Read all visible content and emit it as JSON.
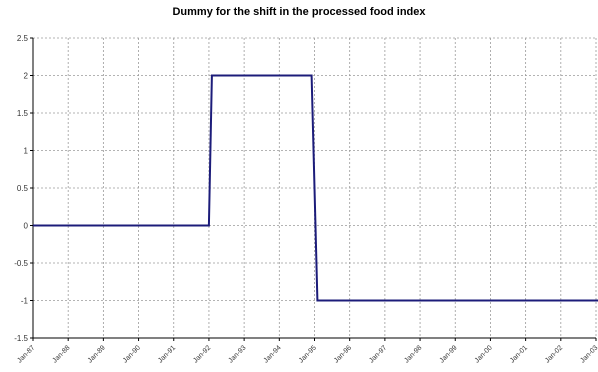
{
  "chart_data": {
    "type": "line",
    "title": "Dummy for the shift in the processed food index",
    "xlabel": "",
    "ylabel": "",
    "ylim": [
      -1.5,
      2.5
    ],
    "yticks": [
      2.5,
      2,
      1.5,
      1,
      0.5,
      0,
      -0.5,
      -1,
      -1.5
    ],
    "xlim_year": [
      1987,
      2003
    ],
    "xtick_labels": [
      "Jan-87",
      "Jan-88",
      "Jan-89",
      "Jan-90",
      "Jan-91",
      "Jan-92",
      "Jan-93",
      "Jan-94",
      "Jan-95",
      "Jan-96",
      "Jan-97",
      "Jan-98",
      "Jan-99",
      "Jan-00",
      "Jan-01",
      "Jan-02",
      "Jan-03"
    ],
    "grid": true,
    "series": [
      {
        "color": "#1c1c7a",
        "x": [
          "Jan-87",
          "Jan-92",
          "Feb-92",
          "Dec-94",
          "Feb-95",
          "Dec-03"
        ],
        "values": [
          0,
          0,
          2,
          2,
          -1,
          -1
        ]
      }
    ]
  }
}
